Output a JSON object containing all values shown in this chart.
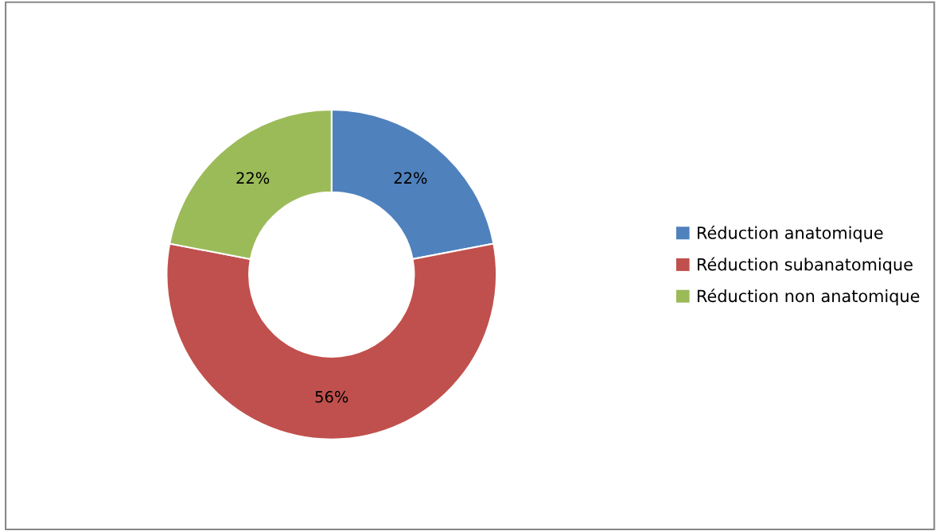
{
  "chart_data": {
    "type": "donut",
    "categories": [
      "Réduction anatomique",
      "Réduction subanatomique",
      "Réduction non anatomique"
    ],
    "values": [
      22,
      56,
      22
    ],
    "colors": [
      "#4f81bd",
      "#c0504d",
      "#9bbb59"
    ],
    "value_labels": [
      "22%",
      "56%",
      "22%"
    ],
    "legend": "right"
  }
}
